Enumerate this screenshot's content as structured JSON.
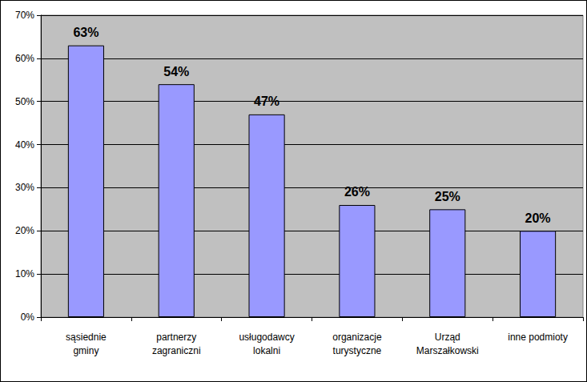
{
  "chart_data": {
    "type": "bar",
    "categories": [
      "sąsiednie\ngminy",
      "partnerzy\nzagraniczni",
      "usługodawcy\nlokalni",
      "organizacje\nturystyczne",
      "Urząd\nMarszałkowski",
      "inne podmioty"
    ],
    "values": [
      63,
      54,
      47,
      26,
      25,
      20
    ],
    "value_labels": [
      "63%",
      "54%",
      "47%",
      "26%",
      "25%",
      "20%"
    ],
    "data_labels": true,
    "color": "#9999ff",
    "ylim": [
      0,
      70
    ],
    "yticks": [
      {
        "value": 0,
        "label": "0%"
      },
      {
        "value": 10,
        "label": "10%"
      },
      {
        "value": 20,
        "label": "20%"
      },
      {
        "value": 30,
        "label": "30%"
      },
      {
        "value": 40,
        "label": "40%"
      },
      {
        "value": 50,
        "label": "50%"
      },
      {
        "value": 60,
        "label": "60%"
      },
      {
        "value": 70,
        "label": "70%"
      }
    ],
    "grid": true
  }
}
